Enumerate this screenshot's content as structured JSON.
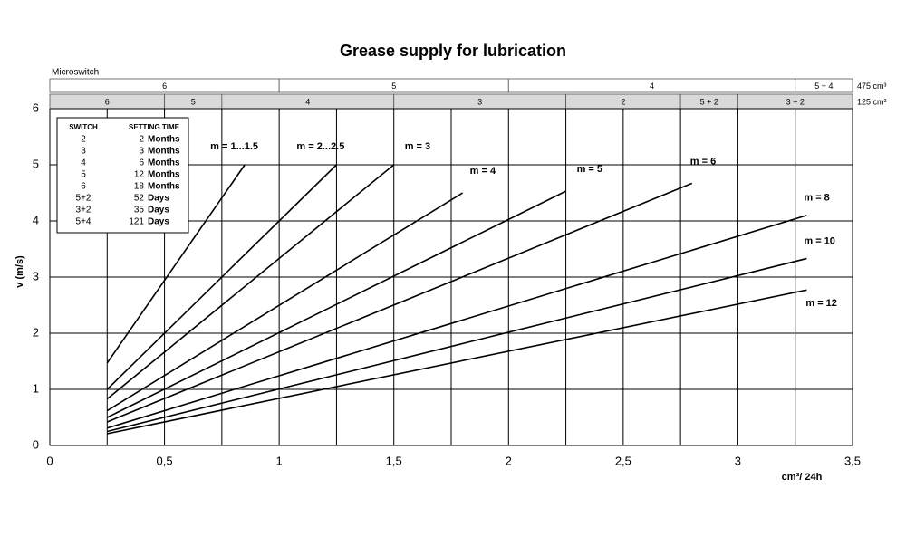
{
  "chart_data": {
    "type": "line",
    "title": "Grease supply for lubrication",
    "x_label": "cm³/ 24h",
    "y_label": "v (m/s)",
    "xlim": [
      0,
      3.5
    ],
    "ylim": [
      0,
      6
    ],
    "xticks": [
      0,
      {
        "value": 0.5,
        "label": "0,5"
      },
      1,
      {
        "value": 1.5,
        "label": "1,5"
      },
      2,
      {
        "value": 2.5,
        "label": "2,5"
      },
      3,
      {
        "value": 3.5,
        "label": "3,5"
      }
    ],
    "yticks": [
      0,
      1,
      2,
      3,
      4,
      5,
      6
    ],
    "minor_xgrid": [
      0.25,
      0.75,
      1.25,
      1.75,
      2.25,
      2.75,
      3.25
    ],
    "grid": true,
    "series": [
      {
        "name": "m = 1...1.5",
        "color": "#000000",
        "x": [
          0.25,
          0.85
        ],
        "values": [
          1.47,
          5.0
        ]
      },
      {
        "name": "m = 2...2.5",
        "color": "#000000",
        "x": [
          0.25,
          1.25
        ],
        "values": [
          1.0,
          5.0
        ]
      },
      {
        "name": "m = 3",
        "color": "#000000",
        "x": [
          0.25,
          1.5
        ],
        "values": [
          0.83,
          5.0
        ]
      },
      {
        "name": "m = 4",
        "color": "#000000",
        "x": [
          0.25,
          1.8
        ],
        "values": [
          0.62,
          4.5
        ]
      },
      {
        "name": "m = 5",
        "color": "#000000",
        "x": [
          0.25,
          2.25
        ],
        "values": [
          0.5,
          4.53
        ]
      },
      {
        "name": "m = 6",
        "color": "#000000",
        "x": [
          0.25,
          2.8
        ],
        "values": [
          0.42,
          4.67
        ]
      },
      {
        "name": "m = 8",
        "color": "#000000",
        "x": [
          0.25,
          3.3
        ],
        "values": [
          0.31,
          4.1
        ]
      },
      {
        "name": "m = 10",
        "color": "#000000",
        "x": [
          0.25,
          3.3
        ],
        "values": [
          0.25,
          3.33
        ]
      },
      {
        "name": "m = 12",
        "color": "#000000",
        "x": [
          0.25,
          3.3
        ],
        "values": [
          0.21,
          2.77
        ]
      }
    ],
    "band_title": "Microswitch",
    "bands": [
      {
        "label": "475 cm³",
        "color": "#ffffff",
        "segments": [
          {
            "label": "6",
            "from": 0,
            "to": 1
          },
          {
            "label": "5",
            "from": 1,
            "to": 2
          },
          {
            "label": "4",
            "from": 2,
            "to": 3.25
          },
          {
            "label": "5 + 4",
            "from": 3.25,
            "to": 3.5
          }
        ]
      },
      {
        "label": "125 cm³",
        "color": "#d9d9d9",
        "segments": [
          {
            "label": "6",
            "from": 0,
            "to": 0.5
          },
          {
            "label": "5",
            "from": 0.5,
            "to": 0.75
          },
          {
            "label": "4",
            "from": 0.75,
            "to": 1.5
          },
          {
            "label": "3",
            "from": 1.5,
            "to": 2.25
          },
          {
            "label": "2",
            "from": 2.25,
            "to": 2.75
          },
          {
            "label": "5 + 2",
            "from": 2.75,
            "to": 3
          },
          {
            "label": "3 + 2",
            "from": 3,
            "to": 3.5
          }
        ]
      }
    ],
    "table": {
      "headers": [
        "SWITCH",
        "SETTING TIME"
      ],
      "rows": [
        [
          "2",
          "2",
          "Months"
        ],
        [
          "3",
          "3",
          "Months"
        ],
        [
          "4",
          "6",
          "Months"
        ],
        [
          "5",
          "12",
          "Months"
        ],
        [
          "6",
          "18",
          "Months"
        ],
        [
          "5+2",
          "52",
          "Days"
        ],
        [
          "3+2",
          "35",
          "Days"
        ],
        [
          "5+4",
          "121",
          "Days"
        ]
      ]
    }
  }
}
